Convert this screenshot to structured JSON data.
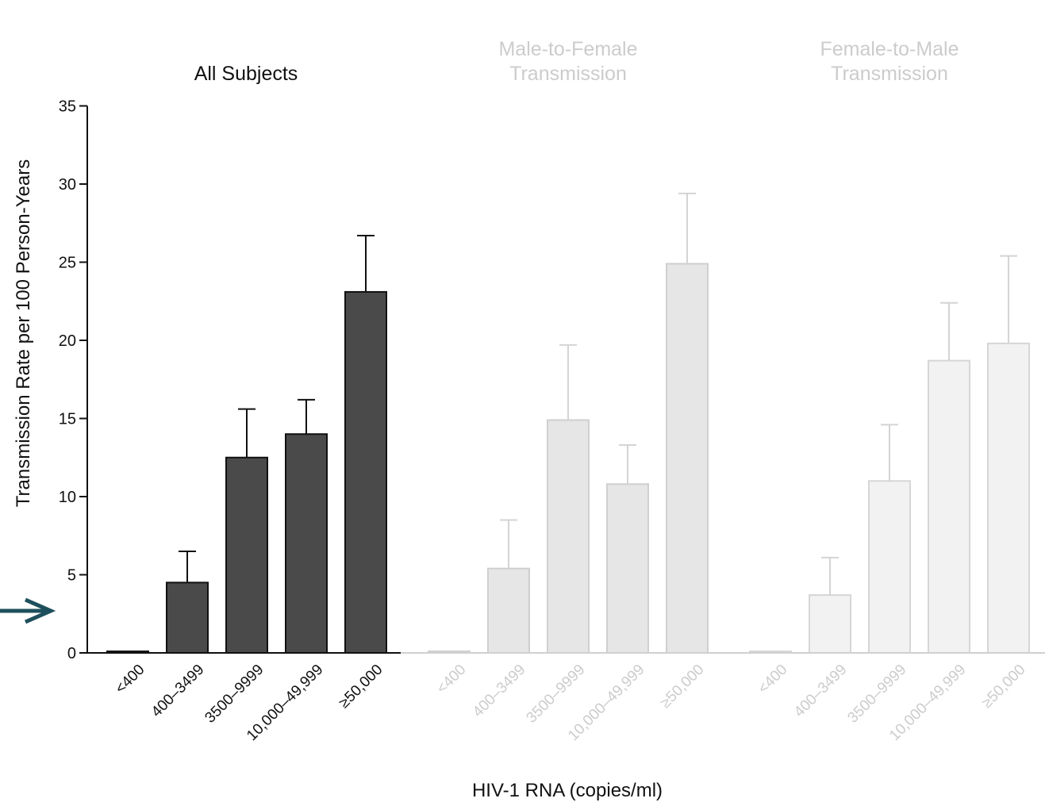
{
  "chart_data": {
    "type": "bar",
    "xlabel": "HIV-1 RNA (copies/ml)",
    "ylabel": "Transmission Rate per 100 Person-Years",
    "ylim": [
      0,
      35
    ],
    "yticks": [
      "0",
      "5",
      "10",
      "15",
      "20",
      "25",
      "30",
      "35"
    ],
    "grid": false,
    "legend": "none",
    "categories": [
      "<400",
      "400–3499",
      "3500–9999",
      "10,000–49,999",
      "≥50,000"
    ],
    "panels": [
      {
        "title": "All Subjects",
        "bar_color": "#4a4a4a",
        "text_color": "#111111",
        "values": [
          0.1,
          4.5,
          12.5,
          14.0,
          23.1
        ],
        "error_upper": [
          null,
          6.5,
          15.6,
          16.2,
          26.7
        ]
      },
      {
        "title": "Male-to-Female Transmission",
        "bar_color": "#e6e6e6",
        "text_color": "#cccccc",
        "values": [
          0.1,
          5.4,
          14.9,
          10.8,
          24.9
        ],
        "error_upper": [
          null,
          8.5,
          19.7,
          13.3,
          29.4
        ]
      },
      {
        "title": "Female-to-Male Transmission",
        "bar_color": "#f2f2f2",
        "text_color": "#cccccc",
        "values": [
          0.1,
          3.7,
          11.0,
          18.7,
          19.8
        ],
        "error_upper": [
          null,
          6.1,
          14.6,
          22.4,
          25.4
        ]
      }
    ]
  },
  "annotation": {
    "arrow_icon": "right-arrow-icon",
    "arrow_color": "#1e4f5c"
  }
}
